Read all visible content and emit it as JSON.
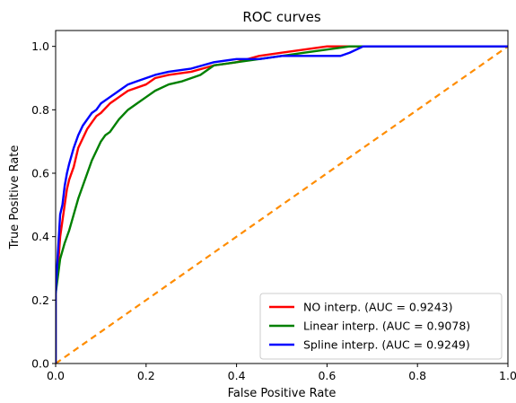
{
  "chart_data": {
    "type": "line",
    "title": "ROC curves",
    "xlabel": "False Positive Rate",
    "ylabel": "True Positive Rate",
    "xlim": [
      0.0,
      1.0
    ],
    "ylim": [
      0.0,
      1.05
    ],
    "xticks": [
      "0.0",
      "0.2",
      "0.4",
      "0.6",
      "0.8",
      "1.0"
    ],
    "yticks": [
      "0.0",
      "0.2",
      "0.4",
      "0.6",
      "0.8",
      "1.0"
    ],
    "grid": false,
    "legend_position": "lower-right",
    "series": [
      {
        "name": "NO interp. (AUC = 0.9243)",
        "color": "#ff0000",
        "x": [
          0,
          0,
          0.005,
          0.01,
          0.015,
          0.02,
          0.025,
          0.03,
          0.04,
          0.05,
          0.06,
          0.07,
          0.08,
          0.09,
          0.1,
          0.12,
          0.14,
          0.16,
          0.18,
          0.2,
          0.22,
          0.25,
          0.3,
          0.35,
          0.4,
          0.45,
          0.5,
          0.55,
          0.6,
          0.65,
          0.68,
          1.0
        ],
        "y": [
          0,
          0.22,
          0.3,
          0.4,
          0.45,
          0.5,
          0.55,
          0.58,
          0.62,
          0.68,
          0.71,
          0.74,
          0.76,
          0.78,
          0.79,
          0.82,
          0.84,
          0.86,
          0.87,
          0.88,
          0.9,
          0.91,
          0.92,
          0.94,
          0.95,
          0.97,
          0.98,
          0.99,
          1.0,
          1.0,
          1.0,
          1.0
        ]
      },
      {
        "name": "Linear interp. (AUC = 0.9078)",
        "color": "#008000",
        "x": [
          0,
          0,
          0.01,
          0.02,
          0.03,
          0.04,
          0.05,
          0.06,
          0.07,
          0.08,
          0.09,
          0.1,
          0.11,
          0.12,
          0.14,
          0.16,
          0.18,
          0.2,
          0.22,
          0.25,
          0.28,
          0.3,
          0.32,
          0.35,
          0.4,
          0.45,
          0.5,
          0.55,
          0.6,
          0.65,
          0.68,
          1.0
        ],
        "y": [
          0,
          0.22,
          0.33,
          0.38,
          0.42,
          0.47,
          0.52,
          0.56,
          0.6,
          0.64,
          0.67,
          0.7,
          0.72,
          0.73,
          0.77,
          0.8,
          0.82,
          0.84,
          0.86,
          0.88,
          0.89,
          0.9,
          0.91,
          0.94,
          0.95,
          0.96,
          0.97,
          0.98,
          0.99,
          1.0,
          1.0,
          1.0
        ]
      },
      {
        "name": "Spline interp. (AUC = 0.9249)",
        "color": "#0000ff",
        "x": [
          0,
          0,
          0.005,
          0.01,
          0.015,
          0.02,
          0.025,
          0.03,
          0.04,
          0.05,
          0.06,
          0.07,
          0.08,
          0.09,
          0.1,
          0.12,
          0.14,
          0.16,
          0.18,
          0.2,
          0.22,
          0.25,
          0.3,
          0.35,
          0.4,
          0.45,
          0.5,
          0.55,
          0.6,
          0.63,
          0.65,
          0.68,
          1.0
        ],
        "y": [
          0,
          0.22,
          0.35,
          0.47,
          0.5,
          0.56,
          0.6,
          0.63,
          0.68,
          0.72,
          0.75,
          0.77,
          0.79,
          0.8,
          0.82,
          0.84,
          0.86,
          0.88,
          0.89,
          0.9,
          0.91,
          0.92,
          0.93,
          0.95,
          0.96,
          0.96,
          0.97,
          0.97,
          0.97,
          0.97,
          0.98,
          1.0,
          1.0
        ]
      },
      {
        "name": "",
        "color": "#ff8c00",
        "dashed": true,
        "x": [
          0,
          1.0
        ],
        "y": [
          0,
          1.0
        ]
      }
    ]
  }
}
